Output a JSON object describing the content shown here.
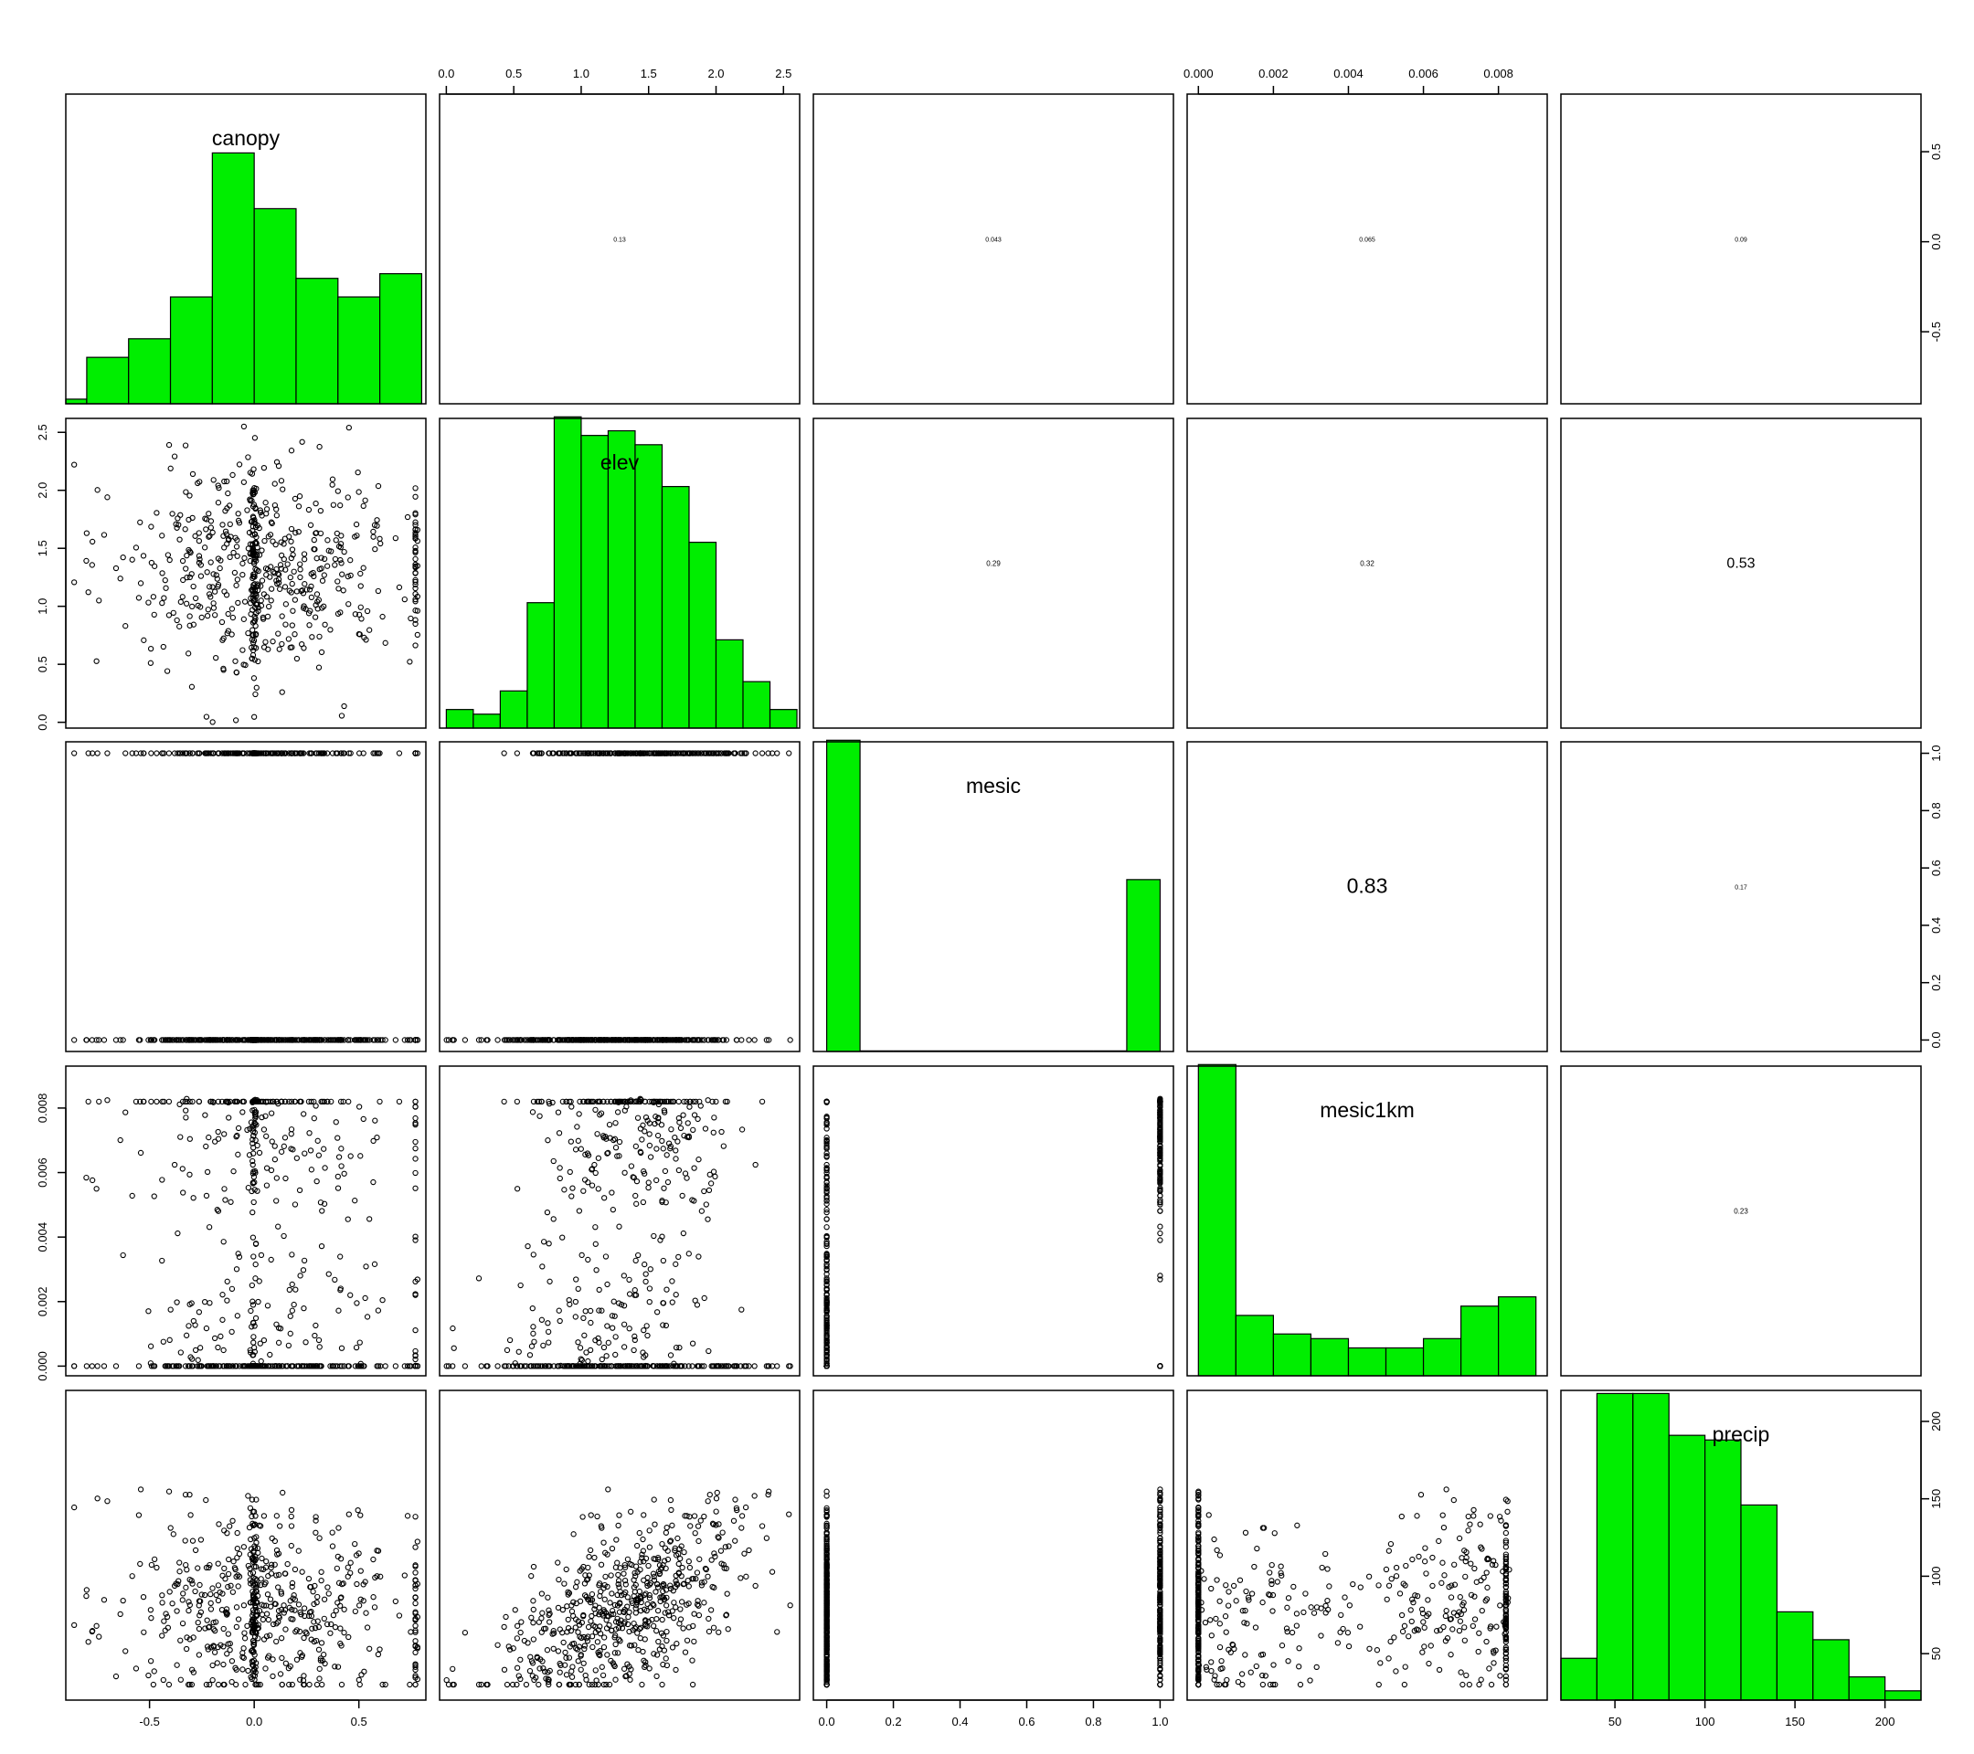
{
  "variables": [
    "canopy",
    "elev",
    "mesic",
    "mesic1km",
    "precip"
  ],
  "colors": {
    "histogram_fill": "#00ee00",
    "points": "#000000",
    "frame": "#000000"
  },
  "chart_data": {
    "type": "scatter-matrix",
    "title": "",
    "ranges": {
      "canopy": [
        -0.9,
        0.82
      ],
      "elev": [
        -0.05,
        2.62
      ],
      "mesic": [
        -0.04,
        1.04
      ],
      "mesic1km": [
        -0.0003,
        0.0093
      ],
      "precip": [
        20,
        220
      ]
    },
    "ticks": {
      "canopy": [
        -0.5,
        0.0,
        0.5
      ],
      "elev": [
        0.0,
        0.5,
        1.0,
        1.5,
        2.0,
        2.5
      ],
      "mesic": [
        0.0,
        0.2,
        0.4,
        0.6,
        0.8,
        1.0
      ],
      "mesic1km": [
        0.0,
        0.002,
        0.004,
        0.006,
        0.008
      ],
      "precip": [
        50,
        100,
        150,
        200
      ]
    },
    "tick_labels": {
      "canopy": [
        "-0.5",
        "0.0",
        "0.5"
      ],
      "elev": [
        "0.0",
        "0.5",
        "1.0",
        "1.5",
        "2.0",
        "2.5"
      ],
      "mesic": [
        "0.0",
        "0.2",
        "0.4",
        "0.6",
        "0.8",
        "1.0"
      ],
      "mesic1km": [
        "0.000",
        "0.002",
        "0.004",
        "0.006",
        "0.008"
      ],
      "precip": [
        "50",
        "100",
        "150",
        "200"
      ]
    },
    "correlations": [
      {
        "row": "canopy",
        "col": "elev",
        "value": "0.13",
        "size": 0.13
      },
      {
        "row": "canopy",
        "col": "mesic",
        "value": "0.043",
        "size": 0.13
      },
      {
        "row": "canopy",
        "col": "mesic1km",
        "value": "0.065",
        "size": 0.13
      },
      {
        "row": "canopy",
        "col": "precip",
        "value": "0.09",
        "size": 0.13
      },
      {
        "row": "elev",
        "col": "mesic",
        "value": "0.29",
        "size": 0.29
      },
      {
        "row": "elev",
        "col": "mesic1km",
        "value": "0.32",
        "size": 0.32
      },
      {
        "row": "elev",
        "col": "precip",
        "value": "0.53",
        "size": 0.53
      },
      {
        "row": "mesic",
        "col": "mesic1km",
        "value": "0.83",
        "size": 0.83
      },
      {
        "row": "mesic",
        "col": "precip",
        "value": "0.17",
        "size": 0.17
      },
      {
        "row": "mesic1km",
        "col": "precip",
        "value": "0.23",
        "size": 0.23
      }
    ],
    "histograms": {
      "canopy": {
        "edges": [
          -0.9,
          -0.8,
          -0.6,
          -0.4,
          -0.2,
          0.0,
          0.2,
          0.4,
          0.6,
          0.8
        ],
        "heights": [
          0.01,
          0.1,
          0.14,
          0.23,
          0.54,
          0.42,
          0.27,
          0.23,
          0.28
        ]
      },
      "elev": {
        "edges": [
          0.0,
          0.2,
          0.4,
          0.6,
          0.8,
          1.0,
          1.2,
          1.4,
          1.6,
          1.8,
          2.0,
          2.2,
          2.4,
          2.6
        ],
        "heights": [
          0.04,
          0.03,
          0.08,
          0.27,
          0.67,
          0.63,
          0.64,
          0.61,
          0.52,
          0.4,
          0.19,
          0.1,
          0.04
        ]
      },
      "mesic": {
        "edges": [
          0.0,
          0.1,
          0.2,
          0.3,
          0.4,
          0.5,
          0.6,
          0.7,
          0.8,
          0.9,
          1.0
        ],
        "heights": [
          0.67,
          0,
          0,
          0,
          0,
          0,
          0,
          0,
          0,
          0.37
        ]
      },
      "mesic1km": {
        "edges": [
          0.0,
          0.001,
          0.002,
          0.003,
          0.004,
          0.005,
          0.006,
          0.007,
          0.008,
          0.009
        ],
        "heights": [
          0.67,
          0.13,
          0.09,
          0.08,
          0.06,
          0.06,
          0.08,
          0.15,
          0.17
        ]
      },
      "precip": {
        "edges": [
          20,
          40,
          60,
          80,
          100,
          120,
          140,
          160,
          180,
          200,
          220
        ],
        "heights": [
          0.09,
          0.66,
          0.66,
          0.57,
          0.56,
          0.42,
          0.19,
          0.13,
          0.05,
          0.02
        ]
      }
    },
    "histogram_vscale": {
      "canopy": 0.58,
      "elev": 0.58,
      "mesic": 0.58,
      "mesic1km": 0.58,
      "precip": 0.58
    },
    "n_points": 600,
    "random_seed": 12345
  }
}
